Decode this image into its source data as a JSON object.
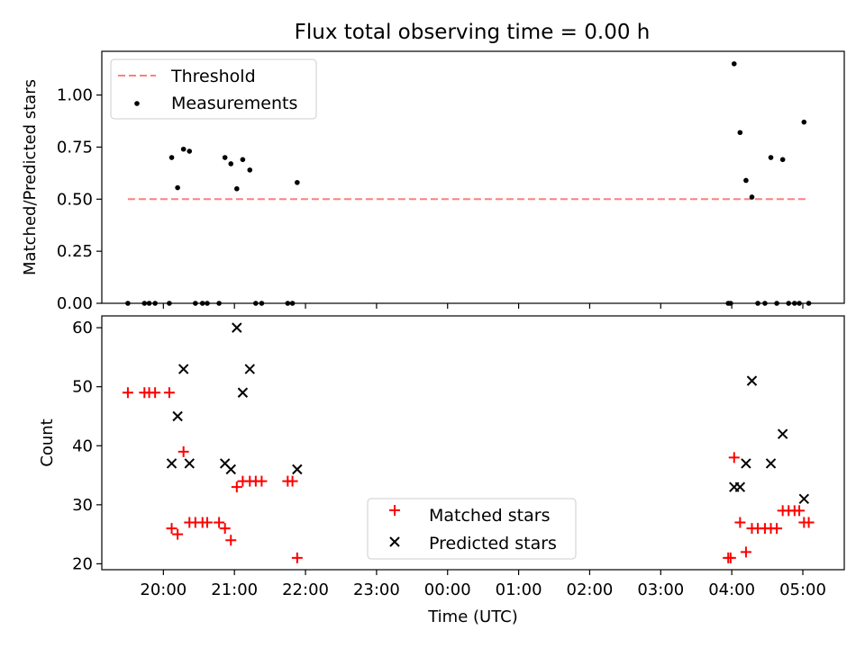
{
  "chart_data": [
    {
      "type": "scatter",
      "title": "Flux total observing time = 0.00 h",
      "xlabel": "",
      "ylabel": "Matched/Predicted stars",
      "ylim": [
        0,
        1.21
      ],
      "yticks": [
        "0.00",
        "0.25",
        "0.50",
        "0.75",
        "1.00"
      ],
      "xlim": [
        "19:08",
        "05:35"
      ],
      "legend_position": "top-left",
      "threshold": {
        "name": "Threshold",
        "value": 0.5,
        "x_range": [
          "19:30",
          "05:05"
        ],
        "color": "#ff7f7f"
      },
      "series": [
        {
          "name": "Measurements",
          "color": "#000000",
          "points": [
            {
              "x": "19:30",
              "y": 0.0
            },
            {
              "x": "19:44",
              "y": 0.0
            },
            {
              "x": "19:48",
              "y": 0.0
            },
            {
              "x": "19:53",
              "y": 0.0
            },
            {
              "x": "20:05",
              "y": 0.0
            },
            {
              "x": "20:07",
              "y": 0.7
            },
            {
              "x": "20:12",
              "y": 0.555
            },
            {
              "x": "20:17",
              "y": 0.74
            },
            {
              "x": "20:22",
              "y": 0.73
            },
            {
              "x": "20:27",
              "y": 0.0
            },
            {
              "x": "20:33",
              "y": 0.0
            },
            {
              "x": "20:37",
              "y": 0.0
            },
            {
              "x": "20:47",
              "y": 0.0
            },
            {
              "x": "20:52",
              "y": 0.7
            },
            {
              "x": "20:57",
              "y": 0.67
            },
            {
              "x": "21:02",
              "y": 0.55
            },
            {
              "x": "21:07",
              "y": 0.69
            },
            {
              "x": "21:13",
              "y": 0.64
            },
            {
              "x": "21:18",
              "y": 0.0
            },
            {
              "x": "21:23",
              "y": 0.0
            },
            {
              "x": "21:45",
              "y": 0.0
            },
            {
              "x": "21:49",
              "y": 0.0
            },
            {
              "x": "21:53",
              "y": 0.58
            },
            {
              "x": "03:57",
              "y": 0.0
            },
            {
              "x": "03:59",
              "y": 0.0
            },
            {
              "x": "04:02",
              "y": 1.15
            },
            {
              "x": "04:07",
              "y": 0.82
            },
            {
              "x": "04:12",
              "y": 0.59
            },
            {
              "x": "04:17",
              "y": 0.51
            },
            {
              "x": "04:22",
              "y": 0.0
            },
            {
              "x": "04:28",
              "y": 0.0
            },
            {
              "x": "04:33",
              "y": 0.7
            },
            {
              "x": "04:38",
              "y": 0.0
            },
            {
              "x": "04:43",
              "y": 0.69
            },
            {
              "x": "04:48",
              "y": 0.0
            },
            {
              "x": "04:53",
              "y": 0.0
            },
            {
              "x": "04:57",
              "y": 0.0
            },
            {
              "x": "05:01",
              "y": 0.87
            },
            {
              "x": "05:05",
              "y": 0.0
            }
          ]
        }
      ]
    },
    {
      "type": "scatter",
      "title": "",
      "xlabel": "Time (UTC)",
      "ylabel": "Count",
      "ylim": [
        19,
        62
      ],
      "yticks": [
        "20",
        "30",
        "40",
        "50",
        "60"
      ],
      "xlim": [
        "19:08",
        "05:35"
      ],
      "xticks": [
        "20:00",
        "21:00",
        "22:00",
        "23:00",
        "00:00",
        "01:00",
        "02:00",
        "03:00",
        "04:00",
        "05:00"
      ],
      "legend_position": "lower center",
      "series": [
        {
          "name": "Matched stars",
          "marker": "plus",
          "color": "#ff0000",
          "points": [
            {
              "x": "19:30",
              "y": 49
            },
            {
              "x": "19:44",
              "y": 49
            },
            {
              "x": "19:48",
              "y": 49
            },
            {
              "x": "19:53",
              "y": 49
            },
            {
              "x": "20:05",
              "y": 49
            },
            {
              "x": "20:07",
              "y": 26
            },
            {
              "x": "20:12",
              "y": 25
            },
            {
              "x": "20:17",
              "y": 39
            },
            {
              "x": "20:22",
              "y": 27
            },
            {
              "x": "20:27",
              "y": 27
            },
            {
              "x": "20:33",
              "y": 27
            },
            {
              "x": "20:37",
              "y": 27
            },
            {
              "x": "20:47",
              "y": 27
            },
            {
              "x": "20:52",
              "y": 26
            },
            {
              "x": "20:57",
              "y": 24
            },
            {
              "x": "21:02",
              "y": 33
            },
            {
              "x": "21:07",
              "y": 34
            },
            {
              "x": "21:13",
              "y": 34
            },
            {
              "x": "21:18",
              "y": 34
            },
            {
              "x": "21:23",
              "y": 34
            },
            {
              "x": "21:45",
              "y": 34
            },
            {
              "x": "21:49",
              "y": 34
            },
            {
              "x": "21:53",
              "y": 21
            },
            {
              "x": "03:57",
              "y": 21
            },
            {
              "x": "03:59",
              "y": 21
            },
            {
              "x": "04:02",
              "y": 38
            },
            {
              "x": "04:07",
              "y": 27
            },
            {
              "x": "04:12",
              "y": 22
            },
            {
              "x": "04:17",
              "y": 26
            },
            {
              "x": "04:22",
              "y": 26
            },
            {
              "x": "04:28",
              "y": 26
            },
            {
              "x": "04:33",
              "y": 26
            },
            {
              "x": "04:38",
              "y": 26
            },
            {
              "x": "04:43",
              "y": 29
            },
            {
              "x": "04:48",
              "y": 29
            },
            {
              "x": "04:53",
              "y": 29
            },
            {
              "x": "04:57",
              "y": 29
            },
            {
              "x": "05:01",
              "y": 27
            },
            {
              "x": "05:05",
              "y": 27
            }
          ]
        },
        {
          "name": "Predicted stars",
          "marker": "x",
          "color": "#000000",
          "points": [
            {
              "x": "20:07",
              "y": 37
            },
            {
              "x": "20:12",
              "y": 45
            },
            {
              "x": "20:17",
              "y": 53
            },
            {
              "x": "20:22",
              "y": 37
            },
            {
              "x": "20:52",
              "y": 37
            },
            {
              "x": "20:57",
              "y": 36
            },
            {
              "x": "21:02",
              "y": 60
            },
            {
              "x": "21:07",
              "y": 49
            },
            {
              "x": "21:13",
              "y": 53
            },
            {
              "x": "21:53",
              "y": 36
            },
            {
              "x": "04:02",
              "y": 33
            },
            {
              "x": "04:07",
              "y": 33
            },
            {
              "x": "04:12",
              "y": 37
            },
            {
              "x": "04:17",
              "y": 51
            },
            {
              "x": "04:33",
              "y": 37
            },
            {
              "x": "04:43",
              "y": 42
            },
            {
              "x": "05:01",
              "y": 31
            }
          ]
        }
      ]
    }
  ]
}
